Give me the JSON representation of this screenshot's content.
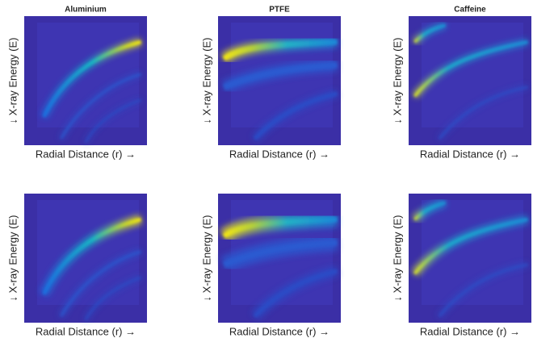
{
  "figure": {
    "rows": [
      {
        "panels": [
          {
            "title": "Aluminium",
            "xlabel": "Radial Distance (r) →",
            "ylabel": "↓ X-ray Energy (E)"
          },
          {
            "title": "PTFE",
            "xlabel": "Radial Distance (r) →",
            "ylabel": "↓ X-ray Energy (E)"
          },
          {
            "title": "Caffeine",
            "xlabel": "Radial Distance (r) →",
            "ylabel": "↓ X-ray Energy (E)"
          }
        ]
      },
      {
        "panels": [
          {
            "xlabel": "Radial Distance (r) →",
            "ylabel": "↓ X-ray Energy (E)"
          },
          {
            "xlabel": "Radial Distance (r) →",
            "ylabel": "↓ X-ray Energy (E)"
          },
          {
            "xlabel": "Radial Distance (r) →",
            "ylabel": "↓ X-ray Energy (E)"
          }
        ]
      }
    ]
  }
}
